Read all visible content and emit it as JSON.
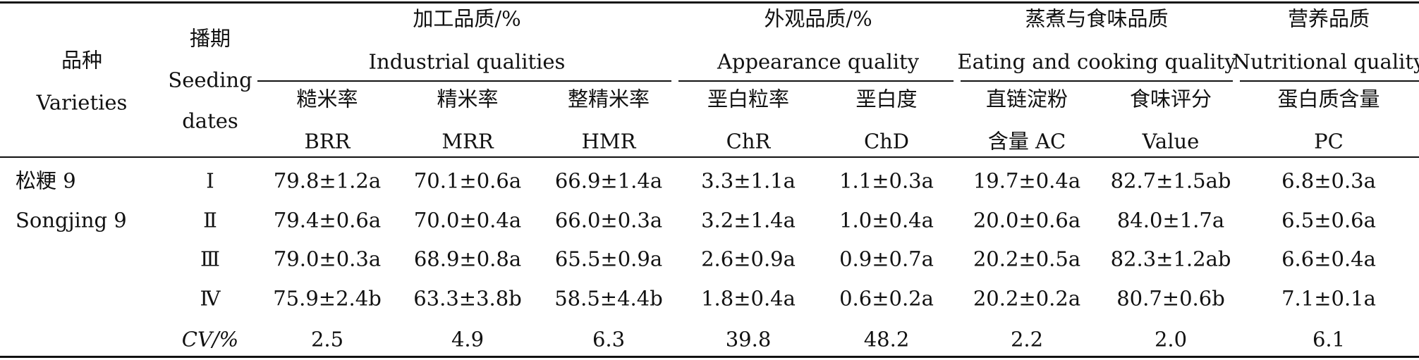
{
  "header": {
    "variety_cn": "品种",
    "variety_en": "Varieties",
    "sowing_cn": "播期",
    "sowing_en1": "Seeding",
    "sowing_en2": "dates",
    "groups": [
      {
        "cn": "加工品质/%",
        "en": "Industrial qualities"
      },
      {
        "cn": "外观品质/%",
        "en": "Appearance quality"
      },
      {
        "cn": "蒸煮与食味品质",
        "en": "Eating and cooking quality"
      },
      {
        "cn": "营养品质",
        "en": "Nutritional quality"
      }
    ],
    "columns": [
      {
        "cn": "糙米率",
        "en": "BRR"
      },
      {
        "cn": "精米率",
        "en": "MRR"
      },
      {
        "cn": "整精米率",
        "en": "HMR"
      },
      {
        "cn": "垩白粒率",
        "en": "ChR"
      },
      {
        "cn": "垩白度",
        "en": "ChD"
      },
      {
        "cn": "直链淀粉",
        "en": "含量 AC"
      },
      {
        "cn": "食味评分",
        "en": "Value"
      },
      {
        "cn": "蛋白质含量",
        "en": "PC"
      }
    ]
  },
  "variety": {
    "cn": "松粳 9",
    "en": "Songjing 9"
  },
  "rows": [
    {
      "sowing": "Ⅰ",
      "values": [
        "79.8±1.2a",
        "70.1±0.6a",
        "66.9±1.4a",
        "3.3±1.1a",
        "1.1±0.3a",
        "19.7±0.4a",
        "82.7±1.5ab",
        "6.8±0.3a"
      ]
    },
    {
      "sowing": "Ⅱ",
      "values": [
        "79.4±0.6a",
        "70.0±0.4a",
        "66.0±0.3a",
        "3.2±1.4a",
        "1.0±0.4a",
        "20.0±0.6a",
        "84.0±1.7a",
        "6.5±0.6a"
      ]
    },
    {
      "sowing": "Ⅲ",
      "values": [
        "79.0±0.3a",
        "68.9±0.8a",
        "65.5±0.9a",
        "2.6±0.9a",
        "0.9±0.7a",
        "20.2±0.5a",
        "82.3±1.2ab",
        "6.6±0.4a"
      ]
    },
    {
      "sowing": "Ⅳ",
      "values": [
        "75.9±2.4b",
        "63.3±3.8b",
        "58.5±4.4b",
        "1.8±0.4a",
        "0.6±0.2a",
        "20.2±0.2a",
        "80.7±0.6b",
        "7.1±0.1a"
      ]
    }
  ],
  "cv": {
    "label": "CV/%",
    "values": [
      "2.5",
      "4.9",
      "6.3",
      "39.8",
      "48.2",
      "2.2",
      "2.0",
      "6.1"
    ]
  }
}
